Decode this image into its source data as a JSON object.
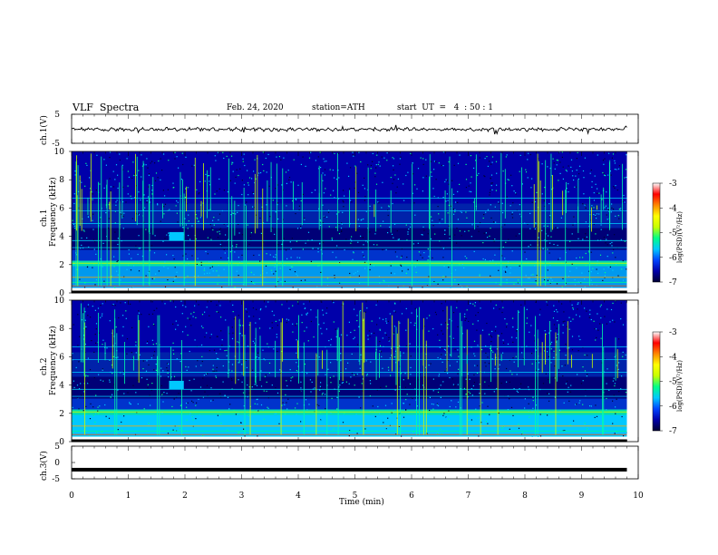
{
  "header": {
    "title": "VLF  Spectra",
    "date": "Feb. 24, 2020",
    "station": "station=ATH",
    "start": "start  UT  =   4  : 50 : 1"
  },
  "chart_data": [
    {
      "type": "line",
      "panel": "ch1-waveform",
      "ylabel": "ch.1(V)",
      "y_ticks": [
        "5",
        "-5"
      ],
      "ylim": [
        -5,
        5
      ],
      "x_range_min": [
        0,
        9.8
      ],
      "trace_level_v": -0.2,
      "trace_amplitude_v": 1.5,
      "color": "#000000"
    },
    {
      "type": "heatmap",
      "panel": "ch1-spectrogram",
      "ylabel_top": "ch.1",
      "ylabel": "Frequency  (kHz)",
      "y_ticks": [
        "0",
        "2",
        "4",
        "6",
        "8",
        "10"
      ],
      "ylim_khz": [
        0,
        10
      ],
      "xlim_min": [
        0,
        9.8
      ],
      "colorbar_label": "log(PSD)(V²/Hz)",
      "colorbar_ticks": [
        "-3",
        "-4",
        "-5",
        "-6",
        "-7"
      ],
      "clim": [
        -7,
        -3
      ],
      "colormap": [
        "#000033",
        "#0000aa",
        "#0044ff",
        "#00c8ff",
        "#00ff88",
        "#c8ff00",
        "#ffff00",
        "#ff8800",
        "#ff0000",
        "#ffffff"
      ]
    },
    {
      "type": "heatmap",
      "panel": "ch2-spectrogram",
      "ylabel_top": "ch.2",
      "ylabel": "Frequency  (kHz)",
      "y_ticks": [
        "0",
        "2",
        "4",
        "6",
        "8",
        "10"
      ],
      "ylim_khz": [
        0,
        10
      ],
      "xlim_min": [
        0,
        9.8
      ],
      "colorbar_label": "log(PSD)(V²/Hz)",
      "colorbar_ticks": [
        "-3",
        "-4",
        "-5",
        "-6",
        "-7"
      ],
      "clim": [
        -7,
        -3
      ]
    },
    {
      "type": "line",
      "panel": "ch3-waveform",
      "ylabel": "ch.3(V)",
      "y_ticks": [
        "5",
        "0",
        "-5"
      ],
      "ylim": [
        -5,
        5
      ],
      "x_range_min": [
        0,
        9.8
      ],
      "trace_level_v": -2.2,
      "color": "#000000"
    }
  ],
  "xaxis": {
    "label": "Time  (min)",
    "ticks": [
      "0",
      "1",
      "2",
      "3",
      "4",
      "5",
      "6",
      "7",
      "8",
      "9",
      "10"
    ],
    "xlim": [
      0,
      10
    ]
  }
}
